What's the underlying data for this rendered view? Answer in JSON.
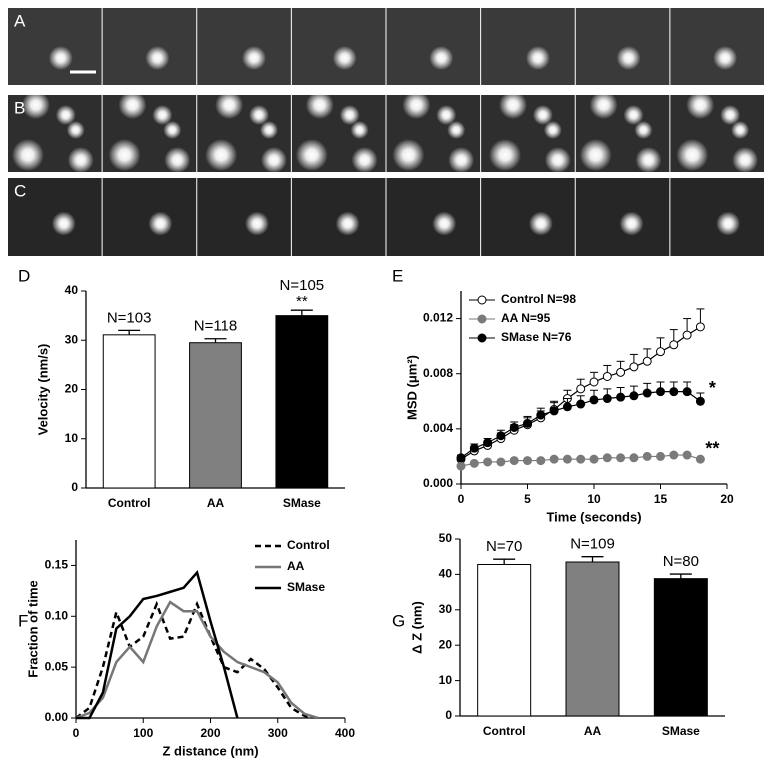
{
  "image_panels": [
    {
      "label": "A"
    },
    {
      "label": "B"
    },
    {
      "label": "C"
    }
  ],
  "chart_data": [
    {
      "type": "bar",
      "label": "D",
      "ylabel": "Velocity (nm/s)",
      "categories": [
        "Control",
        "AA",
        "SMase"
      ],
      "values": [
        31.1,
        29.5,
        35.0
      ],
      "errors": [
        0.9,
        0.8,
        1.1
      ],
      "colors": [
        "#ffffff",
        "#808080",
        "#000000"
      ],
      "bar_labels": [
        "N=103",
        "N=118",
        "N=105"
      ],
      "stars": [
        null,
        null,
        "**"
      ],
      "ylim": [
        0,
        40
      ],
      "yticks": [
        0,
        10,
        20,
        30,
        40
      ]
    },
    {
      "type": "line",
      "label": "E",
      "xlabel": "Time (seconds)",
      "ylabel": "MSD (μm²)",
      "x": [
        0,
        1,
        2,
        3,
        4,
        5,
        6,
        7,
        8,
        9,
        10,
        11,
        12,
        13,
        14,
        15,
        16,
        17,
        18
      ],
      "xlim": [
        0,
        20
      ],
      "xticks": [
        0,
        5,
        10,
        15,
        20
      ],
      "ylim": [
        0,
        0.014
      ],
      "yticks": [
        {
          "value": 0,
          "label": "0.000"
        },
        {
          "value": 0.004,
          "label": "0.004"
        },
        {
          "value": 0.008,
          "label": "0.008"
        },
        {
          "value": 0.012,
          "label": "0.012"
        }
      ],
      "legend": "upper left",
      "series": [
        {
          "name": "Control N=98",
          "color": "#ffffff",
          "line_color": "#000000",
          "values": [
            0.0018,
            0.0024,
            0.0028,
            0.0033,
            0.0039,
            0.0043,
            0.0048,
            0.0054,
            0.0062,
            0.0069,
            0.0074,
            0.0078,
            0.0081,
            0.0085,
            0.0089,
            0.0096,
            0.0101,
            0.0108,
            0.0114
          ],
          "errors": [
            0.0002,
            0.0003,
            0.0003,
            0.0004,
            0.0004,
            0.0005,
            0.0005,
            0.0006,
            0.0006,
            0.0007,
            0.0007,
            0.0008,
            0.0008,
            0.0009,
            0.0009,
            0.001,
            0.0011,
            0.0012,
            0.0013
          ]
        },
        {
          "name": "AA N=95",
          "color": "#7a7a7a",
          "line_color": "#7a7a7a",
          "values": [
            0.0013,
            0.0015,
            0.0016,
            0.0016,
            0.0017,
            0.0017,
            0.0017,
            0.0018,
            0.0018,
            0.0018,
            0.0018,
            0.0019,
            0.0019,
            0.0019,
            0.002,
            0.002,
            0.0021,
            0.0021,
            0.0018
          ],
          "errors": [
            0.0001,
            0.0001,
            0.0001,
            0.0001,
            0.0001,
            0.0001,
            0.0001,
            0.0001,
            0.0001,
            0.0001,
            0.0001,
            0.0001,
            0.0001,
            0.0001,
            0.0001,
            0.0001,
            0.0001,
            0.0001,
            0.0001
          ],
          "star": "**"
        },
        {
          "name": "SMase N=76",
          "color": "#000000",
          "line_color": "#000000",
          "values": [
            0.0019,
            0.0026,
            0.003,
            0.0035,
            0.0041,
            0.0044,
            0.005,
            0.0053,
            0.0056,
            0.0058,
            0.0061,
            0.0062,
            0.0063,
            0.0064,
            0.0066,
            0.0067,
            0.0067,
            0.0067,
            0.006
          ],
          "errors": [
            0.0002,
            0.0003,
            0.0003,
            0.0004,
            0.0004,
            0.0005,
            0.0005,
            0.0006,
            0.0006,
            0.0006,
            0.0007,
            0.0007,
            0.0007,
            0.0007,
            0.0007,
            0.0007,
            0.0007,
            0.0007,
            0.0006
          ],
          "star": "*"
        }
      ]
    },
    {
      "type": "line",
      "label": "F",
      "xlabel": "Z distance (nm)",
      "ylabel": "Fraction of time",
      "x": [
        0,
        20,
        40,
        60,
        80,
        100,
        120,
        140,
        160,
        180,
        200,
        220,
        240,
        260,
        280,
        300,
        320,
        340,
        360
      ],
      "xlim": [
        0,
        400
      ],
      "xticks": [
        0,
        100,
        200,
        300,
        400
      ],
      "ylim": [
        0,
        0.175
      ],
      "yticks": [
        {
          "value": 0,
          "label": "0.00"
        },
        {
          "value": 0.05,
          "label": "0.05"
        },
        {
          "value": 0.1,
          "label": "0.10"
        },
        {
          "value": 0.15,
          "label": "0.15"
        }
      ],
      "legend": "upper right",
      "series": [
        {
          "name": "Control",
          "line_color": "#000000",
          "dash": true,
          "values": [
            0,
            0.01,
            0.05,
            0.104,
            0.07,
            0.08,
            0.112,
            0.078,
            0.08,
            0.112,
            0.08,
            0.05,
            0.045,
            0.058,
            0.048,
            0.03,
            0.01,
            0.002,
            0
          ]
        },
        {
          "name": "AA",
          "line_color": "#777777",
          "values": [
            0,
            0.005,
            0.02,
            0.055,
            0.07,
            0.055,
            0.09,
            0.114,
            0.105,
            0.105,
            0.08,
            0.065,
            0.055,
            0.05,
            0.045,
            0.035,
            0.015,
            0.004,
            0
          ]
        },
        {
          "name": "SMase",
          "line_color": "#000000",
          "values": [
            0,
            0,
            0.025,
            0.088,
            0.1,
            0.117,
            0.12,
            0.124,
            0.128,
            0.143,
            0.095,
            0.05,
            0,
            null,
            null,
            null,
            null,
            null,
            null
          ]
        }
      ]
    },
    {
      "type": "bar",
      "label": "G",
      "ylabel": "Δ Z (nm)",
      "categories": [
        "Control",
        "AA",
        "SMase"
      ],
      "values": [
        42.8,
        43.5,
        38.8
      ],
      "errors": [
        1.5,
        1.5,
        1.3
      ],
      "colors": [
        "#ffffff",
        "#808080",
        "#000000"
      ],
      "bar_labels": [
        "N=70",
        "N=109",
        "N=80"
      ],
      "stars": [
        null,
        null,
        null
      ],
      "ylim": [
        0,
        50
      ],
      "yticks": [
        0,
        10,
        20,
        30,
        40,
        50
      ]
    }
  ]
}
